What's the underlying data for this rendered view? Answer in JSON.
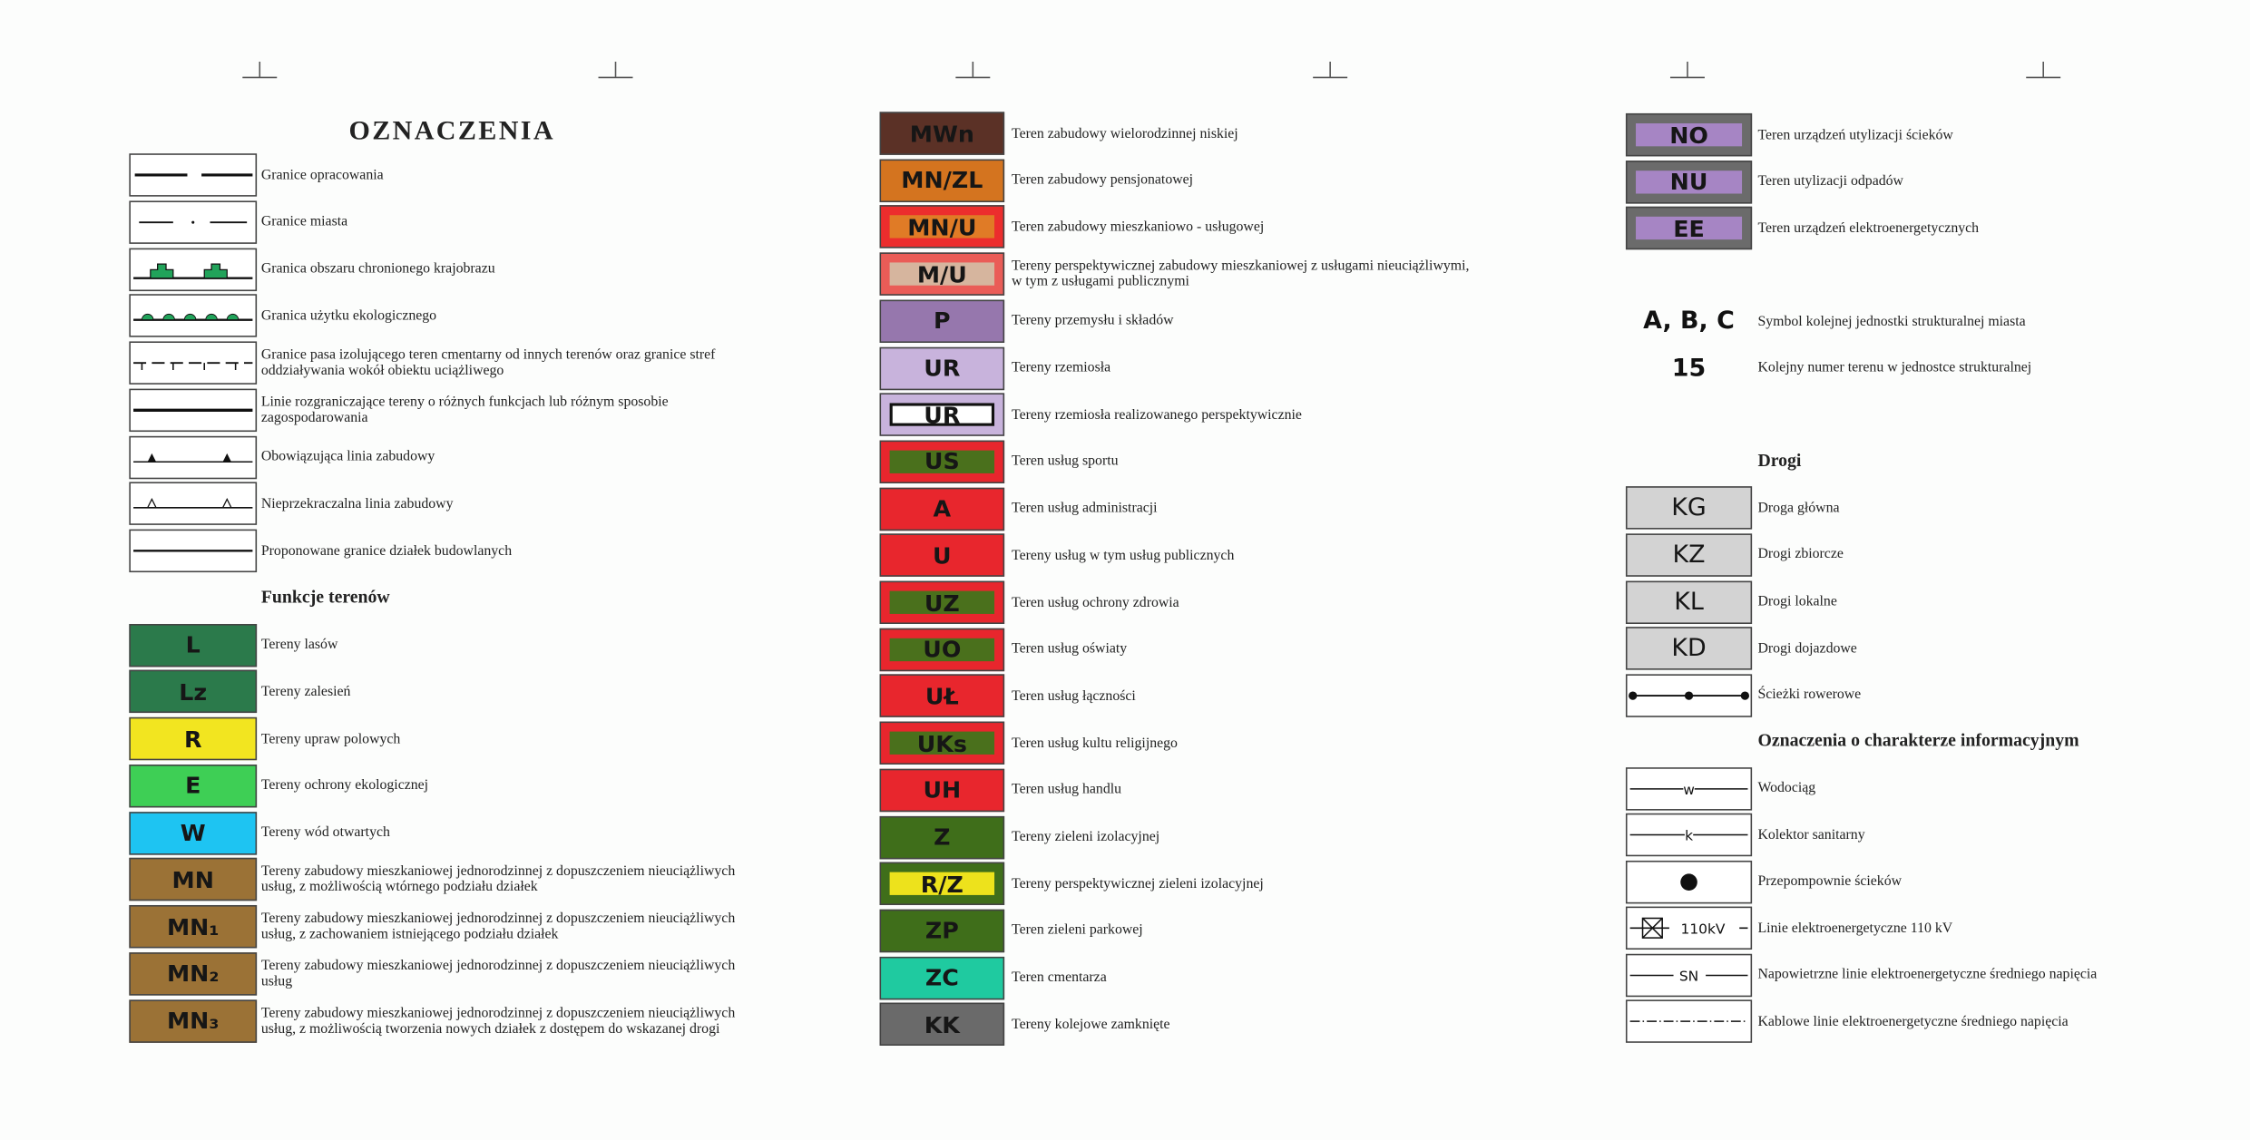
{
  "title": "OZNACZENIA",
  "columns": [
    {
      "rows": [
        {
          "label": [
            "Granice opracowania"
          ]
        },
        {
          "label": [
            "Granice miasta"
          ]
        },
        {
          "label": [
            "Granica obszaru chronionego krajobrazu"
          ]
        },
        {
          "label": [
            "Granica użytku ekologicznego"
          ]
        },
        {
          "label": [
            "Granice pasa izolującego teren cmentarny od innych terenów oraz granice stref",
            "oddziaływania wokół obiektu uciążliwego"
          ]
        },
        {
          "label": [
            "Linie rozgraniczające tereny o różnych funkcjach lub różnym sposobie",
            "zagospodarowania"
          ]
        },
        {
          "label": [
            "Obowiązująca linia zabudowy"
          ]
        },
        {
          "label": [
            "Nieprzekraczalna linia zabudowy"
          ]
        },
        {
          "label": [
            "Proponowane granice działek budowlanych"
          ]
        },
        {
          "heading": "Funkcje terenów"
        },
        {
          "code": "L",
          "color": "#2b7a4b",
          "label": [
            "Tereny lasów"
          ]
        },
        {
          "code": "Lz",
          "color": "#2b7a4b",
          "label": [
            "Tereny zalesień"
          ]
        },
        {
          "code": "R",
          "color": "#f2e520",
          "label": [
            "Tereny upraw polowych"
          ]
        },
        {
          "code": "E",
          "color": "#3ecf55",
          "label": [
            "Tereny ochrony ekologicznej"
          ]
        },
        {
          "code": "W",
          "color": "#1ec4f2",
          "label": [
            "Tereny wód otwartych"
          ]
        },
        {
          "code": "MN",
          "color": "#9b7236",
          "label": [
            "Tereny zabudowy mieszkaniowej jednorodzinnej z dopuszczeniem nieuciążliwych",
            "usług, z możliwością wtórnego podziału działek"
          ]
        },
        {
          "code": "MN₁",
          "color": "#9b7236",
          "label": [
            "Tereny zabudowy mieszkaniowej jednorodzinnej z dopuszczeniem nieuciążliwych",
            "usług, z zachowaniem istniejącego podziału działek"
          ]
        },
        {
          "code": "MN₂",
          "color": "#9b7236",
          "label": [
            "Tereny zabudowy mieszkaniowej jednorodzinnej z dopuszczeniem nieuciążliwych",
            "usług"
          ]
        },
        {
          "code": "MN₃",
          "color": "#9b7236",
          "label": [
            "Tereny zabudowy mieszkaniowej jednorodzinnej z dopuszczeniem nieuciążliwych",
            "usług, z możliwością tworzenia nowych działek z dostępem do wskazanej drogi"
          ]
        }
      ]
    },
    {
      "rows": [
        {
          "code": "MWn",
          "color": "#5b3126",
          "label": [
            "Teren zabudowy wielorodzinnej niskiej"
          ]
        },
        {
          "code": "MN/ZL",
          "color": "#d4741f",
          "label": [
            "Teren zabudowy pensjonatowej"
          ]
        },
        {
          "code": "MN/U",
          "color": "#ec2d2d",
          "inner": "#e07b26",
          "label": [
            "Teren zabudowy mieszkaniowo - usługowej"
          ]
        },
        {
          "code": "M/U",
          "color": "#ea5c57",
          "inner": "#d6b59e",
          "label": [
            "Tereny perspektywicznej zabudowy mieszkaniowej z usługami nieuciążliwymi,",
            "w tym z usługami publicznymi"
          ]
        },
        {
          "code": "P",
          "color": "#9677ad",
          "label": [
            "Tereny przemysłu i składów"
          ]
        },
        {
          "code": "UR",
          "color": "#c8b3dc",
          "label": [
            "Tereny rzemiosła"
          ]
        },
        {
          "code": "UR",
          "color": "#c8b3dc",
          "inner": "#ffffff",
          "label": [
            "Tereny rzemiosła realizowanego perspektywicznie"
          ]
        },
        {
          "code": "US",
          "color": "#e8262d",
          "inner": "#4a701c",
          "label": [
            "Teren usług sportu"
          ]
        },
        {
          "code": "A",
          "color": "#e8262d",
          "label": [
            "Teren usług administracji"
          ]
        },
        {
          "code": "U",
          "color": "#e8262d",
          "label": [
            "Tereny usług w tym usług publicznych"
          ]
        },
        {
          "code": "UZ",
          "color": "#e8262d",
          "inner": "#4a701c",
          "label": [
            "Teren usług ochrony zdrowia"
          ]
        },
        {
          "code": "UO",
          "color": "#e8262d",
          "inner": "#4a701c",
          "label": [
            "Teren usług oświaty"
          ]
        },
        {
          "code": "UŁ",
          "color": "#e8262d",
          "label": [
            "Teren usług łączności"
          ]
        },
        {
          "code": "UKs",
          "color": "#e8262d",
          "inner": "#4a701c",
          "label": [
            "Teren usług kultu religijnego"
          ]
        },
        {
          "code": "UH",
          "color": "#e8262d",
          "label": [
            "Teren usług handlu"
          ]
        },
        {
          "code": "Z",
          "color": "#3f6e1a",
          "label": [
            "Tereny zieleni izolacyjnej"
          ]
        },
        {
          "code": "R/Z",
          "color": "#3f6e1a",
          "inner": "#ede21c",
          "label": [
            "Tereny perspektywicznej zieleni izolacyjnej"
          ]
        },
        {
          "code": "ZP",
          "color": "#3f6e1a",
          "label": [
            "Teren zieleni parkowej"
          ]
        },
        {
          "code": "ZC",
          "color": "#1fcaa0",
          "label": [
            "Teren cmentarza"
          ]
        },
        {
          "code": "KK",
          "color": "#6a6a6a",
          "label": [
            "Tereny kolejowe zamknięte"
          ]
        }
      ]
    },
    {
      "rows": [
        {
          "code": "NO",
          "color": "#6b6b6b",
          "inner": "#a685c4",
          "label": [
            "Teren urządzeń utylizacji ścieków"
          ]
        },
        {
          "code": "NU",
          "color": "#6b6b6b",
          "inner": "#a685c4",
          "label": [
            "Teren utylizacji odpadów"
          ]
        },
        {
          "code": "EE",
          "color": "#6b6b6b",
          "inner": "#a685c4",
          "label": [
            "Teren urządzeń elektroenergetycznych"
          ]
        },
        {
          "code": "A, B, C",
          "label": [
            "Symbol kolejnej jednostki strukturalnej miasta"
          ]
        },
        {
          "code": "15",
          "label": [
            "Kolejny numer terenu w jednostce strukturalnej"
          ]
        },
        {
          "heading": "Drogi"
        },
        {
          "code": "KG",
          "color": "#d3d3d3",
          "label": [
            "Droga główna"
          ]
        },
        {
          "code": "KZ",
          "color": "#d3d3d3",
          "label": [
            "Drogi zbiorcze"
          ]
        },
        {
          "code": "KL",
          "color": "#d3d3d3",
          "label": [
            "Drogi lokalne"
          ]
        },
        {
          "code": "KD",
          "color": "#d3d3d3",
          "label": [
            "Drogi dojazdowe"
          ]
        },
        {
          "label": [
            "Ścieżki rowerowe"
          ]
        },
        {
          "heading": "Oznaczenia o charakterze informacyjnym"
        },
        {
          "symbol": "w",
          "label": [
            "Wodociąg"
          ]
        },
        {
          "symbol": "k",
          "label": [
            "Kolektor sanitarny"
          ]
        },
        {
          "label": [
            "Przepompownie ścieków"
          ]
        },
        {
          "symbol": "110kV",
          "label": [
            "Linie elektroenergetyczne 110 kV"
          ]
        },
        {
          "symbol": "SN",
          "label": [
            "Napowietrzne linie elektroenergetyczne średniego napięcia"
          ]
        },
        {
          "label": [
            "Kablowe linie elektroenergetyczne średniego napięcia"
          ]
        }
      ]
    }
  ]
}
